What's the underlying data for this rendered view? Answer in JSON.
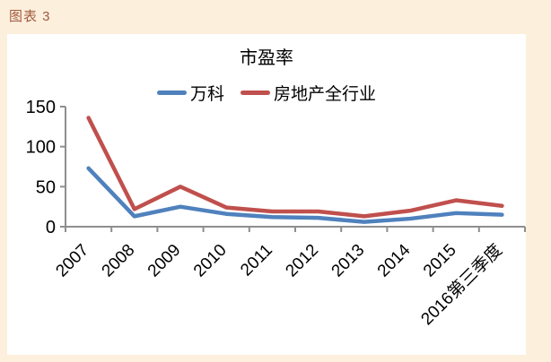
{
  "header": {
    "caption": "图表 3"
  },
  "chart_data": {
    "type": "line",
    "title": "市盈率",
    "categories": [
      "2007",
      "2008",
      "2009",
      "2010",
      "2011",
      "2012",
      "2013",
      "2014",
      "2015",
      "2016第三季度"
    ],
    "series": [
      {
        "name": "万科",
        "color": "#4f81bd",
        "values": [
          73,
          13,
          25,
          16,
          12,
          11,
          6,
          10,
          17,
          15
        ]
      },
      {
        "name": "房地产全行业",
        "color": "#c0504d",
        "values": [
          136,
          22,
          50,
          24,
          19,
          19,
          13,
          20,
          33,
          26
        ]
      }
    ],
    "xlabel": "",
    "ylabel": "",
    "ylim": [
      0,
      150
    ],
    "yticks": [
      0,
      50,
      100,
      150
    ],
    "legend_position": "top",
    "grid": false,
    "axis_color": "#8e8e8e",
    "x_tick_label_rotation_deg": -45,
    "background_color": "#fcefdc",
    "plot_background_color": "#ffffff"
  }
}
